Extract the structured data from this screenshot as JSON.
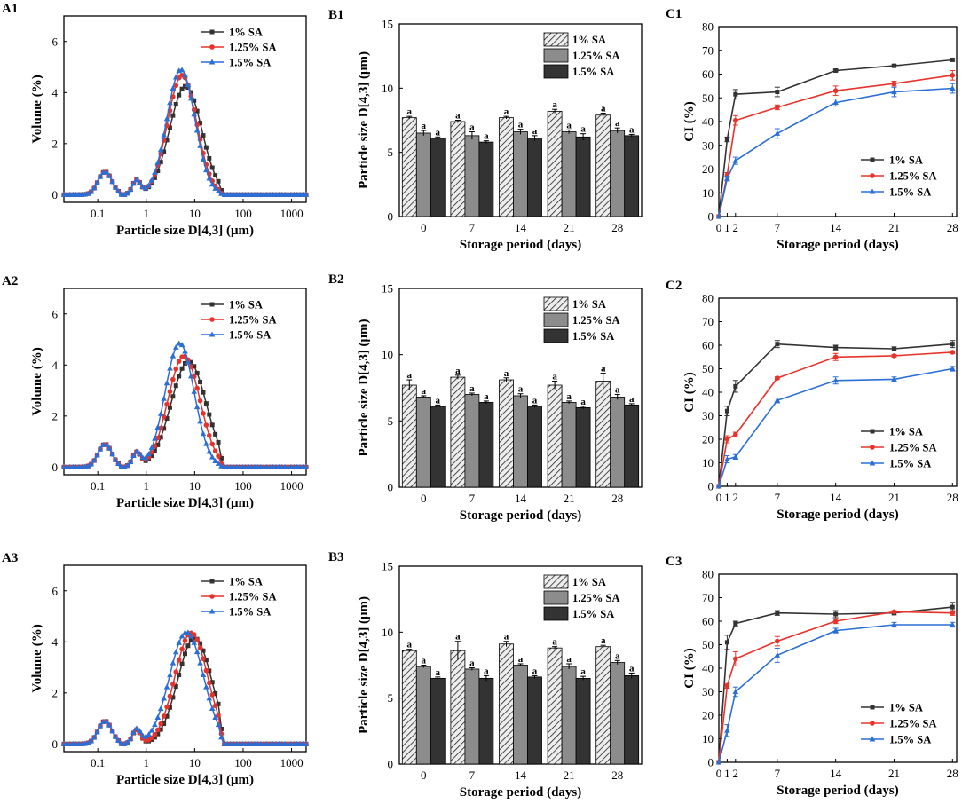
{
  "figure": {
    "colors": {
      "black": "#333333",
      "red": "#e8332b",
      "blue": "#2a6fd6",
      "hatch_bar": "#e6e6e6",
      "grey_bar": "#8c8c8c",
      "dark_bar": "#333333"
    },
    "a_panels": {
      "xlabel": "Particle size D[4,3] (μm)",
      "ylabel": "Volume (%)",
      "xticks": [
        0.1,
        1,
        10,
        100,
        1000
      ],
      "xtick_labels": [
        "0.1",
        "1",
        "10",
        "100",
        "1000"
      ],
      "yticks": [
        0,
        2,
        4,
        6
      ],
      "ylim": [
        -0.3,
        7.0
      ],
      "xlim": [
        0.02,
        2000
      ],
      "legend": [
        "1% SA",
        "1.25% SA",
        "1.5% SA"
      ],
      "panels": [
        {
          "label": "A1",
          "peaks": [
            {
              "center": 6.5,
              "height": 4.25,
              "width": 0.33
            },
            {
              "center": 5.5,
              "height": 4.68,
              "width": 0.3
            },
            {
              "center": 5.2,
              "height": 4.9,
              "width": 0.29
            }
          ]
        },
        {
          "label": "A2",
          "peaks": [
            {
              "center": 7.5,
              "height": 4.15,
              "width": 0.36
            },
            {
              "center": 6.0,
              "height": 4.35,
              "width": 0.33
            },
            {
              "center": 4.9,
              "height": 4.85,
              "width": 0.3
            }
          ]
        },
        {
          "label": "A3",
          "peaks": [
            {
              "center": 10.0,
              "height": 4.15,
              "width": 0.35
            },
            {
              "center": 8.5,
              "height": 4.35,
              "width": 0.34
            },
            {
              "center": 6.8,
              "height": 4.38,
              "width": 0.35
            }
          ]
        }
      ]
    },
    "b_panels": {
      "xlabel": "Storage period (days)",
      "ylabel": "Particle size D[4,3] (μm)",
      "categories": [
        "0",
        "7",
        "14",
        "21",
        "28"
      ],
      "yticks": [
        0,
        5,
        10,
        15
      ],
      "ylim": [
        0,
        15
      ],
      "legend": [
        "1% SA",
        "1.25% SA",
        "1.5% SA"
      ],
      "sig_letter": "a",
      "panels": [
        {
          "label": "B1",
          "series": [
            {
              "name": "1% SA",
              "values": [
                7.7,
                7.4,
                7.7,
                8.2,
                7.9
              ],
              "err": [
                0.1,
                0.1,
                0.1,
                0.15,
                0.15
              ]
            },
            {
              "name": "1.25% SA",
              "values": [
                6.5,
                6.3,
                6.6,
                6.6,
                6.7
              ],
              "err": [
                0.2,
                0.3,
                0.2,
                0.15,
                0.2
              ]
            },
            {
              "name": "1.5% SA",
              "values": [
                6.1,
                5.8,
                6.1,
                6.2,
                6.3
              ],
              "err": [
                0.1,
                0.1,
                0.2,
                0.25,
                0.1
              ]
            }
          ]
        },
        {
          "label": "B2",
          "series": [
            {
              "name": "1% SA",
              "values": [
                7.7,
                8.3,
                8.1,
                7.7,
                8.0
              ],
              "err": [
                0.4,
                0.15,
                0.15,
                0.3,
                0.6
              ]
            },
            {
              "name": "1.25% SA",
              "values": [
                6.8,
                7.0,
                6.9,
                6.4,
                6.8
              ],
              "err": [
                0.1,
                0.1,
                0.15,
                0.1,
                0.2
              ]
            },
            {
              "name": "1.5% SA",
              "values": [
                6.1,
                6.4,
                6.1,
                6.0,
                6.2
              ],
              "err": [
                0.1,
                0.1,
                0.1,
                0.1,
                0.1
              ]
            }
          ]
        },
        {
          "label": "B3",
          "series": [
            {
              "name": "1% SA",
              "values": [
                8.6,
                8.6,
                9.1,
                8.8,
                8.9
              ],
              "err": [
                0.1,
                0.7,
                0.2,
                0.1,
                0.1
              ]
            },
            {
              "name": "1.25% SA",
              "values": [
                7.4,
                7.2,
                7.5,
                7.4,
                7.7
              ],
              "err": [
                0.1,
                0.1,
                0.1,
                0.2,
                0.15
              ]
            },
            {
              "name": "1.5% SA",
              "values": [
                6.5,
                6.5,
                6.6,
                6.5,
                6.7
              ],
              "err": [
                0.1,
                0.2,
                0.1,
                0.15,
                0.2
              ]
            }
          ]
        }
      ]
    },
    "c_panels": {
      "xlabel": "Storage period (days)",
      "ylabel": "CI (%)",
      "x": [
        0,
        1,
        2,
        7,
        14,
        21,
        28
      ],
      "xticks": [
        0,
        1,
        2,
        7,
        14,
        21,
        28
      ],
      "xtick_labels": [
        "0",
        "1",
        "2",
        "7",
        "14",
        "21",
        "28"
      ],
      "yticks": [
        0,
        10,
        20,
        30,
        40,
        50,
        60,
        70,
        80
      ],
      "ylim": [
        0,
        80
      ],
      "xlim": [
        0,
        28.5
      ],
      "legend": [
        "1% SA",
        "1.25% SA",
        "1.5% SA"
      ],
      "panels": [
        {
          "label": "C1",
          "series": [
            {
              "name": "1% SA",
              "values": [
                0,
                32.5,
                51.5,
                52.5,
                61.5,
                63.5,
                66
              ],
              "err": [
                0,
                1,
                2,
                2,
                0.5,
                0.5,
                0.5
              ]
            },
            {
              "name": "1.25% SA",
              "values": [
                0,
                17.5,
                40.5,
                46,
                53,
                56,
                59.5
              ],
              "err": [
                0,
                1,
                2,
                1,
                2,
                1,
                2
              ]
            },
            {
              "name": "1.5% SA",
              "values": [
                0,
                16,
                23.5,
                35,
                48,
                52.5,
                54
              ],
              "err": [
                0,
                1,
                1.5,
                2,
                1.5,
                2,
                2
              ]
            }
          ]
        },
        {
          "label": "C2",
          "series": [
            {
              "name": "1% SA",
              "values": [
                0,
                32,
                42.5,
                60.5,
                59,
                58.5,
                60.5
              ],
              "err": [
                0,
                2,
                2.5,
                1.5,
                1,
                0.8,
                1.5
              ]
            },
            {
              "name": "1.25% SA",
              "values": [
                0,
                20,
                22,
                46,
                55,
                55.5,
                57
              ],
              "err": [
                0,
                1.5,
                1,
                0.5,
                1.5,
                0.5,
                0.5
              ]
            },
            {
              "name": "1.5% SA",
              "values": [
                0,
                11.5,
                12.5,
                36.5,
                45,
                45.5,
                50
              ],
              "err": [
                0,
                1.5,
                1,
                1,
                1.5,
                1,
                1
              ]
            }
          ]
        },
        {
          "label": "C3",
          "series": [
            {
              "name": "1% SA",
              "values": [
                0,
                51,
                59,
                63.5,
                63,
                63.5,
                66
              ],
              "err": [
                0,
                3,
                1,
                1,
                1.5,
                0.8,
                2
              ]
            },
            {
              "name": "1.25% SA",
              "values": [
                0,
                32.5,
                44,
                51.5,
                60,
                64,
                63.5
              ],
              "err": [
                0,
                1,
                3,
                2,
                1,
                0.5,
                1
              ]
            },
            {
              "name": "1.5% SA",
              "values": [
                0,
                13.5,
                30,
                45.5,
                56,
                58.5,
                58.5
              ],
              "err": [
                0,
                2.5,
                2,
                3,
                1,
                1,
                1
              ]
            }
          ]
        }
      ]
    }
  },
  "chart_data": [
    {
      "type": "line",
      "title": "A1",
      "xscale": "log",
      "xlabel": "Particle size D[4,3] (μm)",
      "ylabel": "Volume (%)",
      "xlim": [
        0.02,
        2000
      ],
      "ylim": [
        -0.3,
        7
      ],
      "series": [
        {
          "name": "1% SA",
          "peak_x": 6.5,
          "peak_y": 4.25
        },
        {
          "name": "1.25% SA",
          "peak_x": 5.5,
          "peak_y": 4.68
        },
        {
          "name": "1.5% SA",
          "peak_x": 5.2,
          "peak_y": 4.9
        }
      ],
      "legend": "top-right"
    },
    {
      "type": "line",
      "title": "A2",
      "xscale": "log",
      "xlabel": "Particle size D[4,3] (μm)",
      "ylabel": "Volume (%)",
      "xlim": [
        0.02,
        2000
      ],
      "ylim": [
        -0.3,
        7
      ],
      "series": [
        {
          "name": "1% SA",
          "peak_x": 7.5,
          "peak_y": 4.15
        },
        {
          "name": "1.25% SA",
          "peak_x": 6.0,
          "peak_y": 4.35
        },
        {
          "name": "1.5% SA",
          "peak_x": 4.9,
          "peak_y": 4.85
        }
      ],
      "legend": "top-right"
    },
    {
      "type": "line",
      "title": "A3",
      "xscale": "log",
      "xlabel": "Particle size D[4,3] (μm)",
      "ylabel": "Volume (%)",
      "xlim": [
        0.02,
        2000
      ],
      "ylim": [
        -0.3,
        7
      ],
      "series": [
        {
          "name": "1% SA",
          "peak_x": 10.0,
          "peak_y": 4.15
        },
        {
          "name": "1.25% SA",
          "peak_x": 8.5,
          "peak_y": 4.35
        },
        {
          "name": "1.5% SA",
          "peak_x": 6.8,
          "peak_y": 4.38
        }
      ],
      "legend": "top-right"
    },
    {
      "type": "bar",
      "title": "B1",
      "categories": [
        "0",
        "7",
        "14",
        "21",
        "28"
      ],
      "xlabel": "Storage period (days)",
      "ylabel": "Particle size D[4,3] (μm)",
      "ylim": [
        0,
        15
      ],
      "series": [
        {
          "name": "1% SA",
          "values": [
            7.7,
            7.4,
            7.7,
            8.2,
            7.9
          ]
        },
        {
          "name": "1.25% SA",
          "values": [
            6.5,
            6.3,
            6.6,
            6.6,
            6.7
          ]
        },
        {
          "name": "1.5% SA",
          "values": [
            6.1,
            5.8,
            6.1,
            6.2,
            6.3
          ]
        }
      ]
    },
    {
      "type": "bar",
      "title": "B2",
      "categories": [
        "0",
        "7",
        "14",
        "21",
        "28"
      ],
      "xlabel": "Storage period (days)",
      "ylabel": "Particle size D[4,3] (μm)",
      "ylim": [
        0,
        15
      ],
      "series": [
        {
          "name": "1% SA",
          "values": [
            7.7,
            8.3,
            8.1,
            7.7,
            8.0
          ]
        },
        {
          "name": "1.25% SA",
          "values": [
            6.8,
            7.0,
            6.9,
            6.4,
            6.8
          ]
        },
        {
          "name": "1.5% SA",
          "values": [
            6.1,
            6.4,
            6.1,
            6.0,
            6.2
          ]
        }
      ]
    },
    {
      "type": "bar",
      "title": "B3",
      "categories": [
        "0",
        "7",
        "14",
        "21",
        "28"
      ],
      "xlabel": "Storage period (days)",
      "ylabel": "Particle size D[4,3] (μm)",
      "ylim": [
        0,
        15
      ],
      "series": [
        {
          "name": "1% SA",
          "values": [
            8.6,
            8.6,
            9.1,
            8.8,
            8.9
          ]
        },
        {
          "name": "1.25% SA",
          "values": [
            7.4,
            7.2,
            7.5,
            7.4,
            7.7
          ]
        },
        {
          "name": "1.5% SA",
          "values": [
            6.5,
            6.5,
            6.6,
            6.5,
            6.7
          ]
        }
      ]
    },
    {
      "type": "line",
      "title": "C1",
      "x": [
        0,
        1,
        2,
        7,
        14,
        21,
        28
      ],
      "xlabel": "Storage period (days)",
      "ylabel": "CI (%)",
      "ylim": [
        0,
        80
      ],
      "series": [
        {
          "name": "1% SA",
          "values": [
            0,
            32.5,
            51.5,
            52.5,
            61.5,
            63.5,
            66
          ]
        },
        {
          "name": "1.25% SA",
          "values": [
            0,
            17.5,
            40.5,
            46,
            53,
            56,
            59.5
          ]
        },
        {
          "name": "1.5% SA",
          "values": [
            0,
            16,
            23.5,
            35,
            48,
            52.5,
            54
          ]
        }
      ],
      "legend": "bottom-right"
    },
    {
      "type": "line",
      "title": "C2",
      "x": [
        0,
        1,
        2,
        7,
        14,
        21,
        28
      ],
      "xlabel": "Storage period (days)",
      "ylabel": "CI (%)",
      "ylim": [
        0,
        80
      ],
      "series": [
        {
          "name": "1% SA",
          "values": [
            0,
            32,
            42.5,
            60.5,
            59,
            58.5,
            60.5
          ]
        },
        {
          "name": "1.25% SA",
          "values": [
            0,
            20,
            22,
            46,
            55,
            55.5,
            57
          ]
        },
        {
          "name": "1.5% SA",
          "values": [
            0,
            11.5,
            12.5,
            36.5,
            45,
            45.5,
            50
          ]
        }
      ],
      "legend": "bottom-right"
    },
    {
      "type": "line",
      "title": "C3",
      "x": [
        0,
        1,
        2,
        7,
        14,
        21,
        28
      ],
      "xlabel": "Storage period (days)",
      "ylabel": "CI (%)",
      "ylim": [
        0,
        80
      ],
      "series": [
        {
          "name": "1% SA",
          "values": [
            0,
            51,
            59,
            63.5,
            63,
            63.5,
            66
          ]
        },
        {
          "name": "1.25% SA",
          "values": [
            0,
            32.5,
            44,
            51.5,
            60,
            64,
            63.5
          ]
        },
        {
          "name": "1.5% SA",
          "values": [
            0,
            13.5,
            30,
            45.5,
            56,
            58.5,
            58.5
          ]
        }
      ],
      "legend": "bottom-right"
    }
  ]
}
